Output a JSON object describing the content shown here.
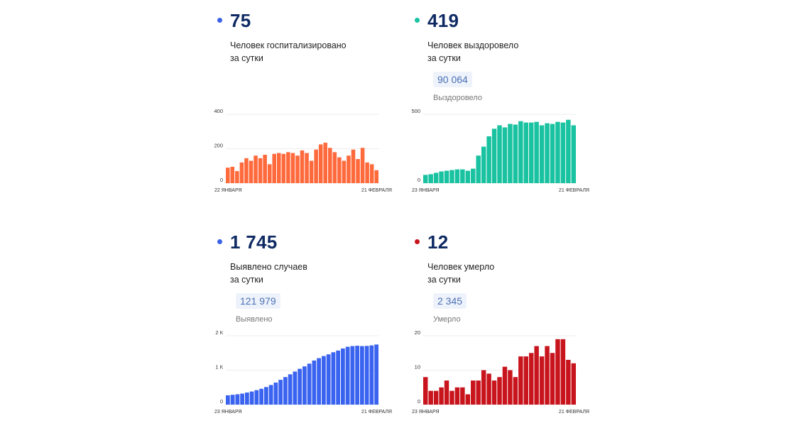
{
  "cards": [
    {
      "id": "hospitalized",
      "value": "75",
      "desc_line1": "Человек госпитализировано",
      "desc_line2": "за сутки",
      "total": null,
      "total_label": null,
      "color": "#ff6a3d",
      "dot_color": "#3a63e6"
    },
    {
      "id": "recovered",
      "value": "419",
      "desc_line1": "Человек выздоровело",
      "desc_line2": "за сутки",
      "total": "90 064",
      "total_label": "Выздоровело",
      "color": "#19c2a0",
      "dot_color": "#19c2a0"
    },
    {
      "id": "cases",
      "value": "1 745",
      "desc_line1": "Выявлено случаев",
      "desc_line2": "за сутки",
      "total": "121 979",
      "total_label": "Выявлено",
      "color": "#3a63f0",
      "dot_color": "#3a63e6"
    },
    {
      "id": "deaths",
      "value": "12",
      "desc_line1": "Человек умерло",
      "desc_line2": "за сутки",
      "total": "2 345",
      "total_label": "Умерло",
      "color": "#c8141c",
      "dot_color": "#c8141c"
    }
  ],
  "chart_data": [
    {
      "type": "bar",
      "title": "Человек госпитализировано за сутки",
      "x_start": "22 ЯНВАРЯ",
      "x_end": "21 ФЕВРАЛЯ",
      "ylim": [
        0,
        400
      ],
      "yticks": [
        0,
        200,
        400
      ],
      "ytick_labels": [
        "0",
        "200",
        "400"
      ],
      "values": [
        90,
        95,
        70,
        120,
        145,
        130,
        160,
        145,
        165,
        110,
        170,
        175,
        170,
        180,
        175,
        160,
        190,
        175,
        130,
        195,
        225,
        235,
        205,
        180,
        150,
        130,
        160,
        195,
        140,
        205,
        120,
        110,
        75
      ]
    },
    {
      "type": "bar",
      "title": "Человек выздоровело за сутки",
      "x_start": "23 ЯНВАРЯ",
      "x_end": "21 ФЕВРАЛЯ",
      "ylim": [
        0,
        500
      ],
      "yticks": [
        0,
        500
      ],
      "ytick_labels": [
        "0",
        "500"
      ],
      "values": [
        60,
        65,
        75,
        85,
        90,
        95,
        100,
        100,
        90,
        105,
        200,
        265,
        340,
        395,
        420,
        405,
        430,
        425,
        450,
        440,
        440,
        445,
        420,
        435,
        430,
        445,
        440,
        460,
        420
      ]
    },
    {
      "type": "bar",
      "title": "Выявлено случаев за сутки",
      "x_start": "23 ЯНВАРЯ",
      "x_end": "21 ФЕВРАЛЯ",
      "ylim": [
        0,
        2000
      ],
      "yticks": [
        0,
        1000,
        2000
      ],
      "ytick_labels": [
        "0",
        "1 К",
        "2 К"
      ],
      "values": [
        270,
        285,
        300,
        320,
        350,
        380,
        420,
        460,
        510,
        570,
        640,
        720,
        800,
        880,
        960,
        1040,
        1110,
        1190,
        1280,
        1350,
        1410,
        1460,
        1520,
        1570,
        1630,
        1680,
        1700,
        1710,
        1700,
        1705,
        1720,
        1745
      ]
    },
    {
      "type": "bar",
      "title": "Человек умерло за сутки",
      "x_start": "23 ЯНВАРЯ",
      "x_end": "21 ФЕВРАЛЯ",
      "ylim": [
        0,
        20
      ],
      "yticks": [
        0,
        10,
        20
      ],
      "ytick_labels": [
        "0",
        "10",
        "20"
      ],
      "values": [
        8,
        4,
        4,
        5,
        7,
        4,
        5,
        5,
        3,
        7,
        7,
        10,
        9,
        7,
        8,
        11,
        10,
        8,
        14,
        14,
        15,
        17,
        14,
        17,
        15,
        19,
        19,
        13,
        12
      ]
    }
  ]
}
